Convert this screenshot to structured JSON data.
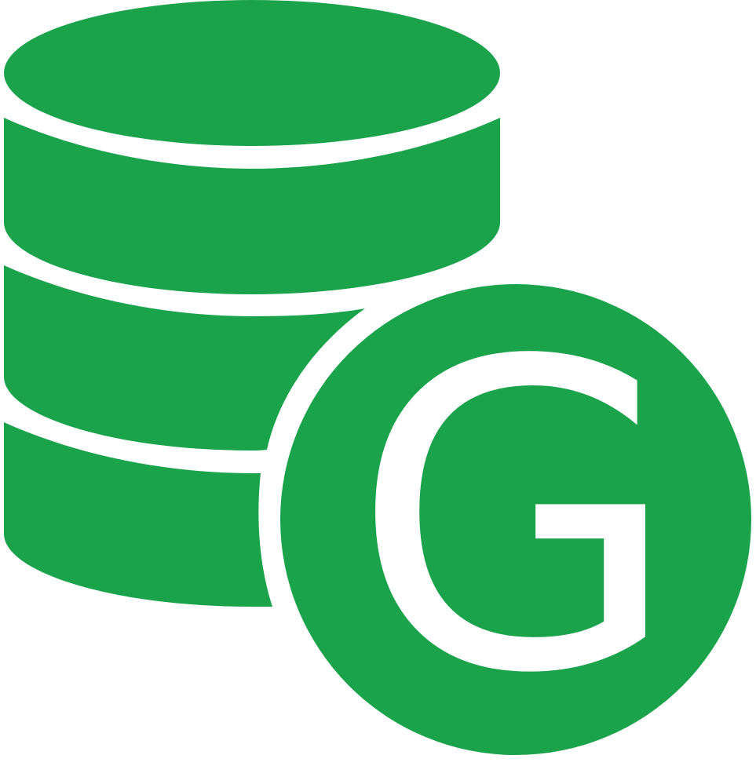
{
  "icon": {
    "name": "database-icon",
    "badge_icon": "g-badge-icon",
    "badge_letter": "G",
    "color": "#1AA34A",
    "background": "#FFFFFF"
  }
}
